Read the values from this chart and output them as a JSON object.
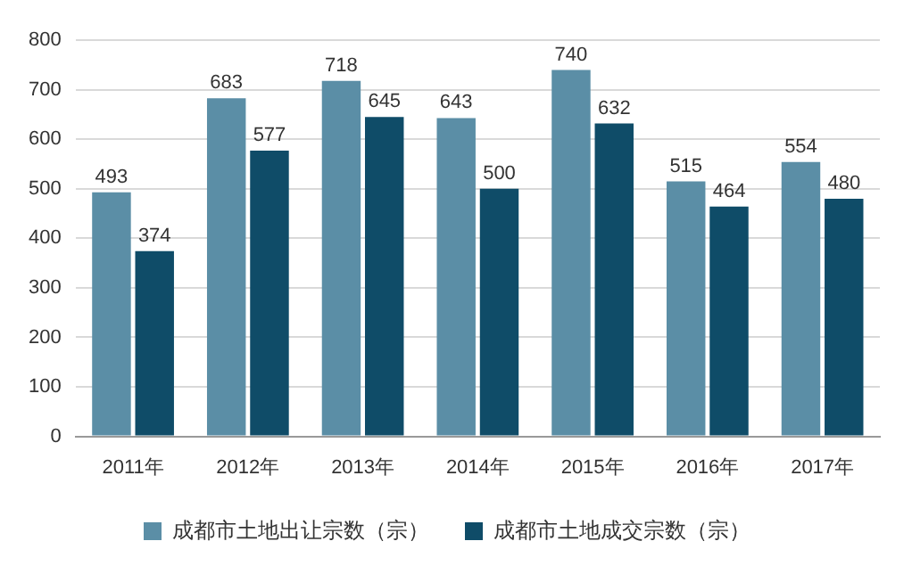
{
  "chart_data": {
    "type": "bar",
    "categories": [
      "2011年",
      "2012年",
      "2013年",
      "2014年",
      "2015年",
      "2016年",
      "2017年"
    ],
    "series": [
      {
        "name": "成都市土地出让宗数（宗）",
        "color": "#5b8ea6",
        "values": [
          493,
          683,
          718,
          643,
          740,
          515,
          554
        ]
      },
      {
        "name": "成都市土地成交宗数（宗）",
        "color": "#0f4c68",
        "values": [
          374,
          577,
          645,
          500,
          632,
          464,
          480
        ]
      }
    ],
    "ylim": [
      0,
      800
    ],
    "yticks": [
      0,
      100,
      200,
      300,
      400,
      500,
      600,
      700,
      800
    ],
    "grid": "y",
    "legend": "bottom",
    "data_labels": true
  }
}
